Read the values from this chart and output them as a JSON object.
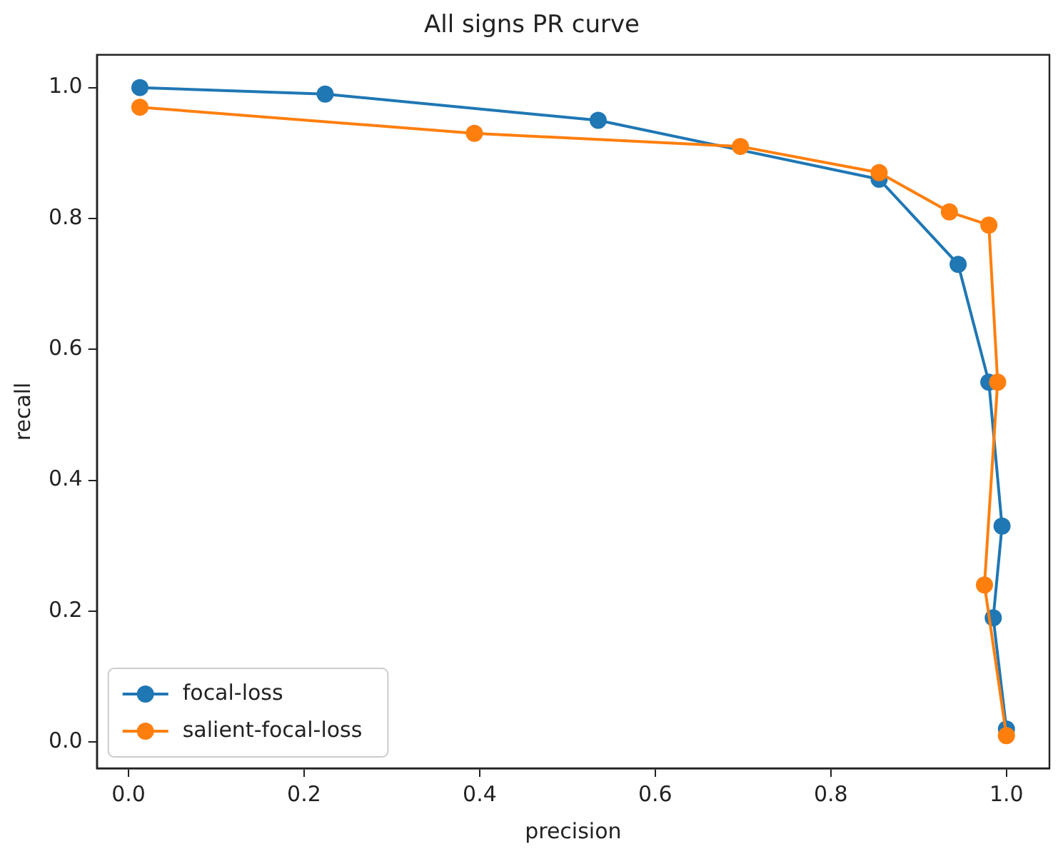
{
  "chart_data": {
    "type": "line",
    "title": "All signs PR curve",
    "xlabel": "precision",
    "ylabel": "recall",
    "xlim": [
      -0.036,
      1.049
    ],
    "ylim": [
      -0.04,
      1.05
    ],
    "xticks": [
      {
        "value": 0,
        "label": "0.0"
      },
      {
        "value": 0.2,
        "label": "0.2"
      },
      {
        "value": 0.4,
        "label": "0.4"
      },
      {
        "value": 0.6,
        "label": "0.6"
      },
      {
        "value": 0.8,
        "label": "0.8"
      },
      {
        "value": 1,
        "label": "1.0"
      }
    ],
    "yticks": [
      {
        "value": 0,
        "label": "0.0"
      },
      {
        "value": 0.2,
        "label": "0.2"
      },
      {
        "value": 0.4,
        "label": "0.4"
      },
      {
        "value": 0.6,
        "label": "0.6"
      },
      {
        "value": 0.8,
        "label": "0.8"
      },
      {
        "value": 1,
        "label": "1.0"
      }
    ],
    "marker": "circle",
    "line_style": "solid",
    "legend": "bottom left",
    "grid": false,
    "series": [
      {
        "name": "focal-loss",
        "color": "#1f77b4",
        "x": [
          0.013,
          0.224,
          0.535,
          0.855,
          0.945,
          0.98,
          0.995,
          0.985,
          1.0
        ],
        "values": [
          1.0,
          0.99,
          0.95,
          0.86,
          0.73,
          0.55,
          0.33,
          0.19,
          0.02
        ]
      },
      {
        "name": "salient-focal-loss",
        "color": "#ff7f0e",
        "x": [
          0.013,
          0.394,
          0.697,
          0.855,
          0.935,
          0.98,
          0.99,
          0.975,
          1.0
        ],
        "values": [
          0.97,
          0.93,
          0.91,
          0.87,
          0.81,
          0.79,
          0.55,
          0.24,
          0.01
        ]
      }
    ]
  }
}
